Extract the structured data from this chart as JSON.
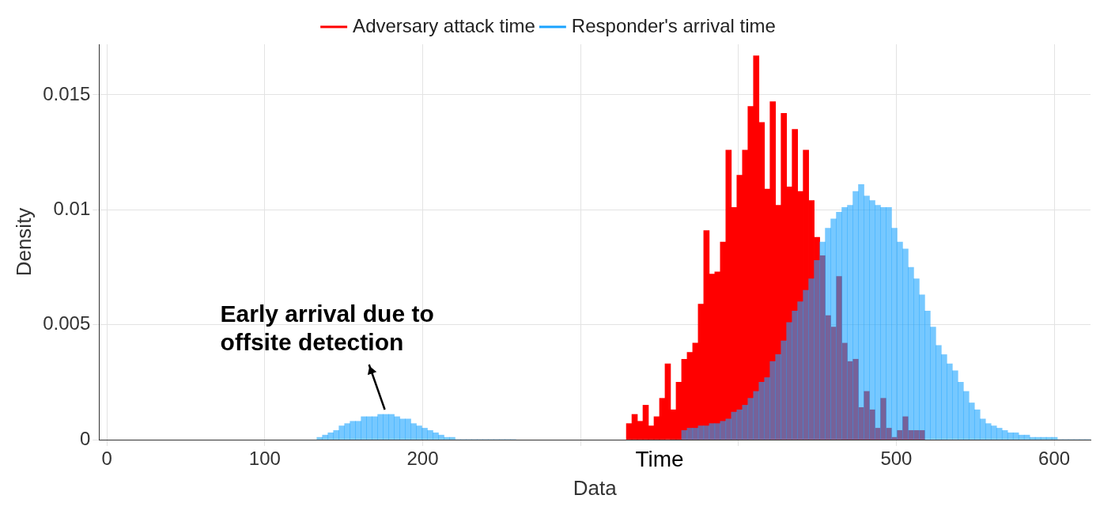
{
  "chart_data": {
    "type": "histogram",
    "xlabel": "Data",
    "ylabel": "Density",
    "xlim": [
      -5,
      623
    ],
    "ylim": [
      0,
      0.0172
    ],
    "xticks": [
      0,
      100,
      200,
      {
        "value": 300,
        "label": null
      },
      {
        "value": 400,
        "label": null
      },
      500,
      600
    ],
    "yticks": [
      0,
      0.005,
      0.01,
      0.015
    ],
    "grid": true,
    "legend": "top",
    "annotations": [
      {
        "text": "Early arrival due to offsite detection",
        "x": 177,
        "y": 0.0011
      },
      "Time"
    ],
    "bins": [
      133,
      136.5,
      140,
      143.5,
      147,
      150.5,
      154,
      157.5,
      161,
      164.5,
      168,
      171.5,
      175,
      178.5,
      182,
      185.5,
      189,
      192.5,
      196,
      199.5,
      203,
      206.5,
      210,
      213.5,
      217,
      220.5,
      224,
      227.5,
      231,
      234.5,
      238,
      241.5,
      245,
      248.5,
      252,
      255.5,
      259,
      262.5,
      266,
      269.5,
      273,
      276.5,
      280,
      283.5,
      287,
      290.5,
      294,
      297.5,
      301,
      304.5,
      308,
      311.5,
      315,
      318.5,
      322,
      325.5,
      329,
      332.5,
      336,
      339.5,
      343,
      346.5,
      350,
      353.5,
      357,
      360.5,
      364,
      367.5,
      371,
      374.5,
      378,
      381.5,
      385,
      388.5,
      392,
      395.5,
      399,
      402.5,
      406,
      409.5,
      413,
      416.5,
      420,
      423.5,
      427,
      430.5,
      434,
      437.5,
      441,
      444.5,
      448,
      451.5,
      455,
      458.5,
      462,
      465.5,
      469,
      472.5,
      476,
      479.5,
      483,
      486.5,
      490,
      493.5,
      497,
      500.5,
      504,
      507.5,
      511,
      514.5,
      518,
      521.5,
      525,
      528.5,
      532,
      535.5,
      539,
      542.5,
      546,
      549.5,
      553,
      556.5,
      560,
      563.5,
      567,
      570.5,
      574,
      577.5,
      581,
      584.5,
      588,
      591.5,
      595,
      598.5,
      602,
      605.5,
      609,
      612.5,
      616,
      619.5,
      623
    ],
    "series": [
      {
        "name": "Adversary attack time",
        "color": "#ff0000",
        "values": [
          null,
          null,
          null,
          null,
          null,
          null,
          null,
          null,
          null,
          null,
          null,
          null,
          null,
          null,
          null,
          null,
          null,
          null,
          null,
          null,
          null,
          null,
          null,
          null,
          null,
          null,
          null,
          null,
          null,
          null,
          null,
          null,
          null,
          null,
          null,
          null,
          null,
          null,
          null,
          null,
          null,
          null,
          null,
          null,
          null,
          null,
          null,
          null,
          null,
          null,
          null,
          null,
          null,
          null,
          null,
          null,
          0.0007,
          0.0011,
          0.0008,
          0.0015,
          0.0006,
          0.001,
          0.0018,
          0.0033,
          0.0013,
          0.0025,
          0.0035,
          0.0038,
          0.0042,
          0.0059,
          0.0091,
          0.0072,
          0.0073,
          0.0086,
          0.0126,
          0.0101,
          0.0115,
          0.0126,
          0.0145,
          0.0167,
          0.0138,
          0.0109,
          0.0147,
          0.0102,
          0.0142,
          0.011,
          0.0135,
          0.0108,
          0.0126,
          0.0104,
          0.0088,
          0.008,
          0.0054,
          0.0049,
          0.0071,
          0.0042,
          0.0034,
          0.0035,
          0.0014,
          0.0021,
          0.0013,
          0.0005,
          0.0018,
          0.0005,
          0.0001,
          0.0004,
          0.001,
          0.0004,
          0.0004,
          0.0004,
          null,
          null,
          null,
          null,
          null,
          null,
          null,
          null,
          null,
          null,
          null,
          null,
          null,
          null,
          null,
          null,
          null,
          null,
          null,
          null,
          null,
          null,
          null,
          null,
          null,
          null,
          null,
          null,
          null,
          null
        ]
      },
      {
        "name": "Responder's arrival time",
        "color": "#1aa3ff",
        "values": [
          0.0001,
          0.0002,
          0.0003,
          0.0004,
          0.0006,
          0.0007,
          0.0008,
          0.0008,
          0.001,
          0.001,
          0.001,
          0.0011,
          0.0011,
          0.0011,
          0.001,
          0.0009,
          0.0009,
          0.0007,
          0.0006,
          0.0005,
          0.0004,
          0.0003,
          0.0002,
          0.0001,
          0.0001,
          0,
          0,
          0,
          0,
          0,
          0,
          0,
          0,
          0,
          0,
          0,
          null,
          null,
          null,
          null,
          null,
          null,
          null,
          null,
          null,
          null,
          null,
          null,
          null,
          null,
          null,
          null,
          null,
          null,
          null,
          null,
          null,
          null,
          null,
          null,
          null,
          null,
          null,
          null,
          null,
          null,
          0.0004,
          0.0005,
          0.0005,
          0.0006,
          0.0006,
          0.0007,
          0.0007,
          0.0008,
          0.0009,
          0.0012,
          0.0013,
          0.0015,
          0.0018,
          0.0021,
          0.0025,
          0.0027,
          0.0034,
          0.0037,
          0.0043,
          0.0051,
          0.0056,
          0.006,
          0.0065,
          0.007,
          0.0078,
          0.0086,
          0.0092,
          0.0096,
          0.0099,
          0.0101,
          0.0102,
          0.0108,
          0.0111,
          0.0106,
          0.0104,
          0.0102,
          0.0101,
          0.0101,
          0.0092,
          0.0086,
          0.0083,
          0.0075,
          0.007,
          0.0063,
          0.0056,
          0.0049,
          0.0041,
          0.0037,
          0.0033,
          0.003,
          0.0025,
          0.0021,
          0.0016,
          0.0013,
          0.0009,
          0.0007,
          0.0006,
          0.0005,
          0.0004,
          0.0003,
          0.0003,
          0.0002,
          0.0002,
          0.0001,
          0.0001,
          0.0001,
          0.0001,
          0.0001,
          0,
          0,
          0,
          0,
          0,
          0
        ]
      }
    ]
  }
}
